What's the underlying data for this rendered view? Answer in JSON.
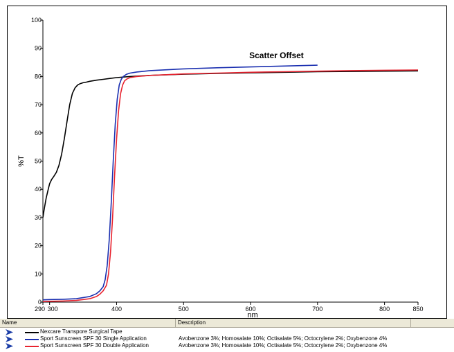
{
  "chart_data": {
    "type": "line",
    "title": "",
    "xlabel": "nm",
    "ylabel": "%T",
    "xlim": [
      290,
      850
    ],
    "ylim": [
      0,
      100
    ],
    "x_ticks": [
      290,
      300,
      400,
      500,
      600,
      700,
      800,
      850
    ],
    "y_ticks": [
      0,
      10,
      20,
      30,
      40,
      50,
      60,
      70,
      80,
      90,
      100
    ],
    "grid": false,
    "annotation": "Scatter Offset",
    "series": [
      {
        "name": "Nexcare Transpore Surgical Tape",
        "color": "#000000",
        "x": [
          290,
          292,
          295,
          298,
          300,
          303,
          306,
          310,
          314,
          318,
          322,
          326,
          330,
          334,
          338,
          342,
          346,
          350,
          355,
          360,
          370,
          380,
          390,
          400,
          420,
          450,
          500,
          550,
          600,
          650,
          700,
          750,
          800,
          850
        ],
        "y": [
          30,
          33,
          37,
          40,
          42,
          43.5,
          44.5,
          46,
          48.5,
          52.5,
          58,
          64,
          70,
          74,
          76,
          77,
          77.5,
          77.8,
          78,
          78.3,
          78.7,
          79,
          79.3,
          79.6,
          80,
          80.4,
          80.8,
          81.1,
          81.3,
          81.5,
          81.7,
          81.8,
          81.9,
          82
        ]
      },
      {
        "name": "Sport Sunscreen SPF 30 Single Application",
        "color": "#1a2fb0",
        "x": [
          290,
          300,
          320,
          340,
          360,
          370,
          375,
          380,
          383,
          386,
          389,
          392,
          395,
          398,
          401,
          404,
          407,
          410,
          415,
          420,
          430,
          450,
          500,
          550,
          600,
          650,
          700
        ],
        "y": [
          0.8,
          0.9,
          1,
          1.2,
          2,
          3,
          4,
          5.5,
          8,
          13,
          22,
          35,
          50,
          63,
          72,
          77,
          79,
          80,
          80.8,
          81.2,
          81.6,
          82.1,
          82.7,
          83.1,
          83.4,
          83.7,
          84
        ]
      },
      {
        "name": "Sport Sunscreen SPF 30 Double Application",
        "color": "#e8232f",
        "x": [
          290,
          300,
          320,
          340,
          360,
          370,
          375,
          380,
          385,
          388,
          391,
          394,
          397,
          400,
          403,
          406,
          409,
          412,
          416,
          420,
          430,
          450,
          500,
          550,
          600,
          650,
          700,
          750,
          800,
          850
        ],
        "y": [
          0.2,
          0.3,
          0.4,
          0.6,
          1.2,
          2,
          2.8,
          4,
          6,
          10,
          18,
          30,
          45,
          58,
          68,
          74,
          77,
          78.5,
          79.2,
          79.6,
          80,
          80.4,
          80.9,
          81.2,
          81.5,
          81.7,
          81.9,
          82.1,
          82.2,
          82.3
        ]
      }
    ]
  },
  "legend_table": {
    "headers": [
      "Name",
      "Description"
    ],
    "rows": [
      {
        "name": "Nexcare Transpore Surgical Tape",
        "description": "",
        "color": "#000000"
      },
      {
        "name": "Sport Sunscreen SPF 30 Single Application",
        "description": "Avobenzone 3%; Homosalate 10%; Octisalate 5%; Octocrylene 2%; Oxybenzone 4%",
        "color": "#1a2fb0"
      },
      {
        "name": "Sport Sunscreen SPF 30 Double Application",
        "description": "Avobenzone 3%; Homosalate 10%; Octisalate 5%; Octocrylene 2%; Oxybenzone 4%",
        "color": "#e8232f"
      }
    ]
  }
}
